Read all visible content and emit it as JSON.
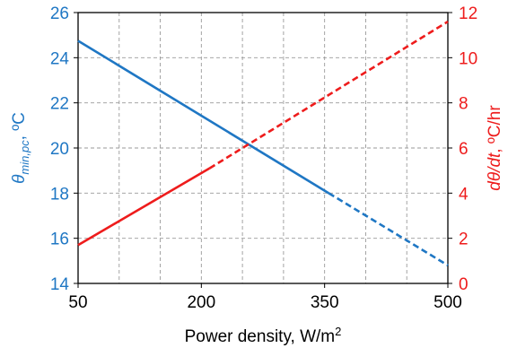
{
  "chart_data": {
    "type": "line",
    "xlabel": "Power density, W/m",
    "xlabel_sup": "2",
    "xlim": [
      50,
      500
    ],
    "xticks": [
      50,
      200,
      350,
      500
    ],
    "xgrid_step": 50,
    "grid": true,
    "y_left": {
      "label_symbol": "θ",
      "label_sub": "min,pc",
      "label_tail": ", ºC",
      "lim": [
        14,
        26
      ],
      "ticks": [
        14,
        16,
        18,
        20,
        22,
        24,
        26
      ],
      "color": "#1f77c4"
    },
    "y_right": {
      "label_main": "dθ/dt",
      "label_tail": ", ºC/hr",
      "lim": [
        0,
        12
      ],
      "ticks": [
        0,
        2,
        4,
        6,
        8,
        10,
        12
      ],
      "color": "#ee1c1c"
    },
    "series": [
      {
        "axis": "left",
        "color": "#1f77c4",
        "segments": [
          {
            "style": "solid",
            "x": [
              50,
              355
            ],
            "y": [
              24.75,
              18.0
            ]
          },
          {
            "style": "dashed",
            "x": [
              355,
              500
            ],
            "y": [
              18.0,
              14.8
            ]
          }
        ]
      },
      {
        "axis": "right",
        "color": "#ee1c1c",
        "segments": [
          {
            "style": "solid",
            "x": [
              50,
              210
            ],
            "y": [
              1.7,
              5.1
            ]
          },
          {
            "style": "dashed",
            "x": [
              210,
              500
            ],
            "y": [
              5.1,
              11.6
            ]
          }
        ]
      }
    ]
  }
}
